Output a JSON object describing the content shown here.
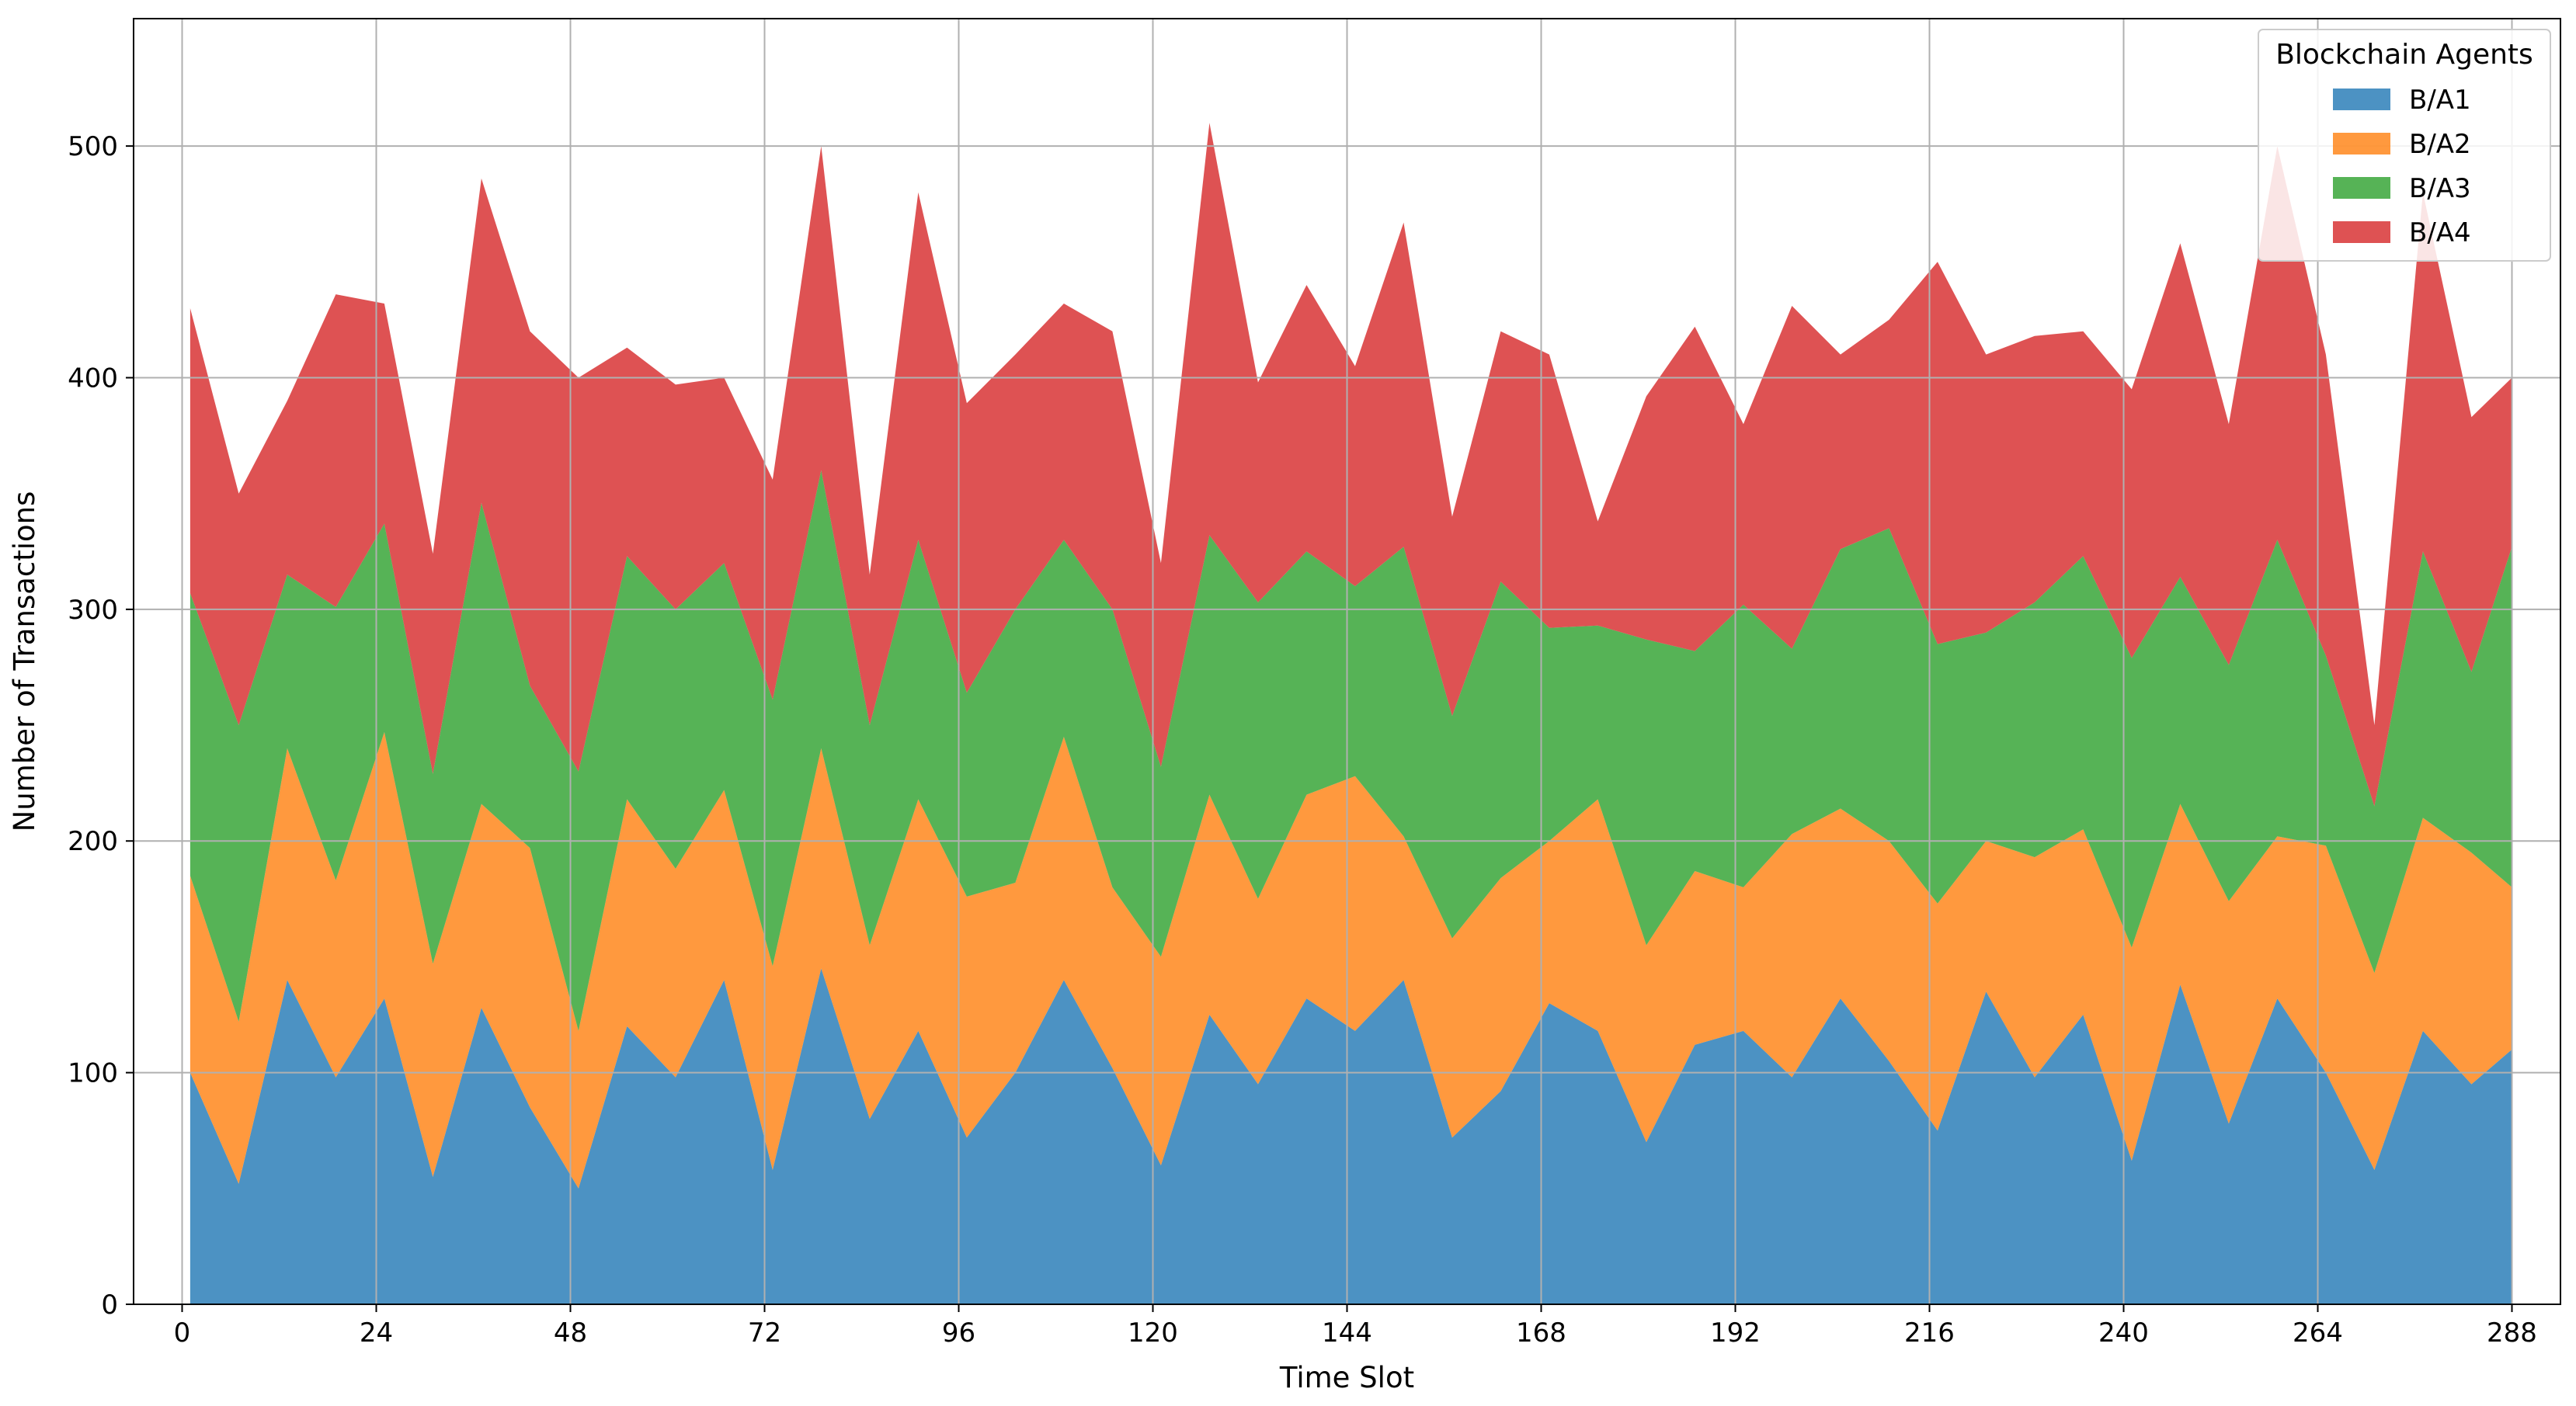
{
  "chart_data": {
    "type": "area",
    "stacked": true,
    "title": "",
    "xlabel": "Time Slot",
    "ylabel": "Number of Transactions",
    "xlim": [
      -6,
      294
    ],
    "ylim": [
      0,
      555
    ],
    "xticks": [
      0,
      24,
      48,
      72,
      96,
      120,
      144,
      168,
      192,
      216,
      240,
      264,
      288
    ],
    "yticks": [
      0,
      100,
      200,
      300,
      400,
      500
    ],
    "grid": true,
    "legend": {
      "title": "Blockchain Agents",
      "placement": "top-right"
    },
    "x": [
      1,
      7,
      13,
      19,
      25,
      31,
      37,
      43,
      49,
      55,
      61,
      67,
      73,
      79,
      85,
      91,
      97,
      103,
      109,
      115,
      121,
      127,
      133,
      139,
      145,
      151,
      157,
      163,
      169,
      175,
      181,
      187,
      193,
      199,
      205,
      211,
      217,
      223,
      229,
      235,
      241,
      247,
      253,
      259,
      265,
      271,
      277,
      283,
      288
    ],
    "series": [
      {
        "name": "B/A1",
        "color": "#1f77b4",
        "values": [
          100,
          52,
          140,
          98,
          132,
          55,
          128,
          85,
          50,
          120,
          98,
          140,
          58,
          145,
          80,
          118,
          72,
          100,
          140,
          102,
          60,
          125,
          95,
          132,
          118,
          140,
          72,
          92,
          130,
          118,
          70,
          112,
          118,
          98,
          132,
          105,
          75,
          135,
          98,
          125,
          62,
          138,
          78,
          132,
          100,
          58,
          118,
          95,
          110
        ]
      },
      {
        "name": "B/A2",
        "color": "#ff7f0e",
        "values": [
          85,
          70,
          100,
          85,
          115,
          92,
          88,
          112,
          68,
          98,
          90,
          82,
          88,
          95,
          75,
          100,
          104,
          82,
          105,
          78,
          90,
          95,
          80,
          88,
          110,
          62,
          86,
          92,
          70,
          100,
          85,
          75,
          62,
          105,
          82,
          95,
          98,
          65,
          95,
          80,
          92,
          78,
          96,
          70,
          98,
          85,
          92,
          100,
          70
        ]
      },
      {
        "name": "B/A3",
        "color": "#2ca02c",
        "values": [
          122,
          128,
          75,
          118,
          90,
          82,
          130,
          70,
          112,
          105,
          112,
          98,
          115,
          120,
          95,
          112,
          88,
          118,
          85,
          120,
          82,
          112,
          128,
          105,
          82,
          125,
          96,
          128,
          92,
          75,
          132,
          95,
          122,
          80,
          112,
          135,
          112,
          90,
          110,
          118,
          125,
          98,
          102,
          128,
          82,
          72,
          115,
          78,
          147
        ]
      },
      {
        "name": "B/A4",
        "color": "#d62728",
        "values": [
          123,
          100,
          75,
          135,
          95,
          95,
          140,
          153,
          170,
          90,
          97,
          80,
          95,
          140,
          65,
          150,
          125,
          110,
          102,
          120,
          88,
          178,
          95,
          115,
          95,
          140,
          86,
          108,
          118,
          45,
          105,
          140,
          78,
          148,
          84,
          90,
          165,
          120,
          115,
          97,
          116,
          144,
          104,
          170,
          130,
          35,
          155,
          110,
          73
        ]
      }
    ]
  }
}
